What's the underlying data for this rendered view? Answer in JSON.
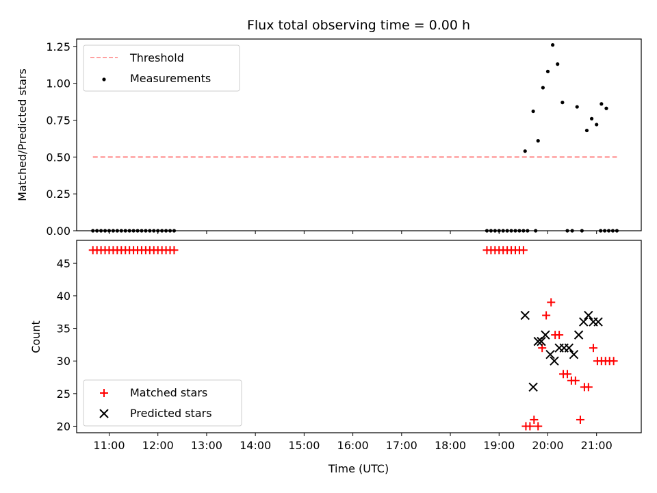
{
  "chart_data": [
    {
      "type": "scatter",
      "title": "Flux total observing time = 0.00 h",
      "xlabel": "",
      "ylabel": "Matched/Predicted stars",
      "ylim": [
        0,
        1.3
      ],
      "yticks": [
        "0.00",
        "0.25",
        "0.50",
        "0.75",
        "1.00",
        "1.25"
      ],
      "xlim": [
        "10:20",
        "21:55"
      ],
      "legend_position": "upper-left",
      "threshold": {
        "name": "Threshold",
        "value": 0.5,
        "x_start": "10:40",
        "x_end": "21:25",
        "color": "#ff8080",
        "style": "dashed"
      },
      "series": [
        {
          "name": "Measurements",
          "marker": "dot",
          "color": "#000000",
          "points": [
            [
              "10:40",
              0
            ],
            [
              "10:45",
              0
            ],
            [
              "10:50",
              0
            ],
            [
              "10:55",
              0
            ],
            [
              "11:00",
              0
            ],
            [
              "11:05",
              0
            ],
            [
              "11:10",
              0
            ],
            [
              "11:15",
              0
            ],
            [
              "11:20",
              0
            ],
            [
              "11:25",
              0
            ],
            [
              "11:30",
              0
            ],
            [
              "11:35",
              0
            ],
            [
              "11:40",
              0
            ],
            [
              "11:45",
              0
            ],
            [
              "11:50",
              0
            ],
            [
              "11:55",
              0
            ],
            [
              "12:00",
              0
            ],
            [
              "12:05",
              0
            ],
            [
              "12:10",
              0
            ],
            [
              "12:15",
              0
            ],
            [
              "12:20",
              0
            ],
            [
              "18:45",
              0
            ],
            [
              "18:50",
              0
            ],
            [
              "18:55",
              0
            ],
            [
              "19:00",
              0
            ],
            [
              "19:05",
              0
            ],
            [
              "19:10",
              0
            ],
            [
              "19:15",
              0
            ],
            [
              "19:20",
              0
            ],
            [
              "19:25",
              0
            ],
            [
              "19:30",
              0
            ],
            [
              "19:35",
              0
            ],
            [
              "19:45",
              0
            ],
            [
              "19:32",
              0.54
            ],
            [
              "19:42",
              0.81
            ],
            [
              "19:48",
              0.61
            ],
            [
              "19:54",
              0.97
            ],
            [
              "20:00",
              1.08
            ],
            [
              "20:06",
              1.26
            ],
            [
              "20:12",
              1.13
            ],
            [
              "20:18",
              0.87
            ],
            [
              "20:24",
              0.0
            ],
            [
              "20:30",
              0.0
            ],
            [
              "20:36",
              0.84
            ],
            [
              "20:42",
              0.0
            ],
            [
              "20:48",
              0.68
            ],
            [
              "20:54",
              0.76
            ],
            [
              "21:00",
              0.72
            ],
            [
              "21:06",
              0.86
            ],
            [
              "21:12",
              0.83
            ],
            [
              "21:05",
              0
            ],
            [
              "21:10",
              0
            ],
            [
              "21:15",
              0
            ],
            [
              "21:20",
              0
            ],
            [
              "21:25",
              0
            ]
          ]
        }
      ]
    },
    {
      "type": "scatter",
      "title": "",
      "xlabel": "Time (UTC)",
      "ylabel": "Count",
      "ylim": [
        19,
        48.5
      ],
      "yticks": [
        "20",
        "25",
        "30",
        "35",
        "40",
        "45"
      ],
      "xticks": [
        "11:00",
        "12:00",
        "13:00",
        "14:00",
        "15:00",
        "16:00",
        "17:00",
        "18:00",
        "19:00",
        "20:00",
        "21:00"
      ],
      "xlim": [
        "10:20",
        "21:55"
      ],
      "legend_position": "lower-left",
      "series": [
        {
          "name": "Matched stars",
          "marker": "plus",
          "color": "#ff0000",
          "points": [
            [
              "10:40",
              47
            ],
            [
              "10:45",
              47
            ],
            [
              "10:50",
              47
            ],
            [
              "10:55",
              47
            ],
            [
              "11:00",
              47
            ],
            [
              "11:05",
              47
            ],
            [
              "11:10",
              47
            ],
            [
              "11:15",
              47
            ],
            [
              "11:20",
              47
            ],
            [
              "11:25",
              47
            ],
            [
              "11:30",
              47
            ],
            [
              "11:35",
              47
            ],
            [
              "11:40",
              47
            ],
            [
              "11:45",
              47
            ],
            [
              "11:50",
              47
            ],
            [
              "11:55",
              47
            ],
            [
              "12:00",
              47
            ],
            [
              "12:05",
              47
            ],
            [
              "12:10",
              47
            ],
            [
              "12:15",
              47
            ],
            [
              "12:20",
              47
            ],
            [
              "18:45",
              47
            ],
            [
              "18:50",
              47
            ],
            [
              "18:55",
              47
            ],
            [
              "19:00",
              47
            ],
            [
              "19:05",
              47
            ],
            [
              "19:10",
              47
            ],
            [
              "19:15",
              47
            ],
            [
              "19:20",
              47
            ],
            [
              "19:25",
              47
            ],
            [
              "19:30",
              47
            ],
            [
              "19:33",
              20
            ],
            [
              "19:38",
              20
            ],
            [
              "19:43",
              21
            ],
            [
              "19:48",
              20
            ],
            [
              "19:53",
              32
            ],
            [
              "19:58",
              37
            ],
            [
              "20:04",
              39
            ],
            [
              "20:09",
              34
            ],
            [
              "20:14",
              34
            ],
            [
              "20:19",
              28
            ],
            [
              "20:24",
              28
            ],
            [
              "20:29",
              27
            ],
            [
              "20:34",
              27
            ],
            [
              "20:40",
              21
            ],
            [
              "20:45",
              26
            ],
            [
              "20:50",
              26
            ],
            [
              "20:56",
              32
            ],
            [
              "21:01",
              30
            ],
            [
              "21:06",
              30
            ],
            [
              "21:11",
              30
            ],
            [
              "21:16",
              30
            ],
            [
              "21:21",
              30
            ]
          ]
        },
        {
          "name": "Predicted stars",
          "marker": "x",
          "color": "#000000",
          "points": [
            [
              "19:32",
              37
            ],
            [
              "19:42",
              26
            ],
            [
              "19:48",
              33
            ],
            [
              "19:52",
              33
            ],
            [
              "19:57",
              34
            ],
            [
              "20:03",
              31
            ],
            [
              "20:08",
              30
            ],
            [
              "20:14",
              32
            ],
            [
              "20:20",
              32
            ],
            [
              "20:26",
              32
            ],
            [
              "20:32",
              31
            ],
            [
              "20:38",
              34
            ],
            [
              "20:44",
              36
            ],
            [
              "20:50",
              37
            ],
            [
              "20:56",
              36
            ],
            [
              "21:02",
              36
            ]
          ]
        }
      ]
    }
  ]
}
